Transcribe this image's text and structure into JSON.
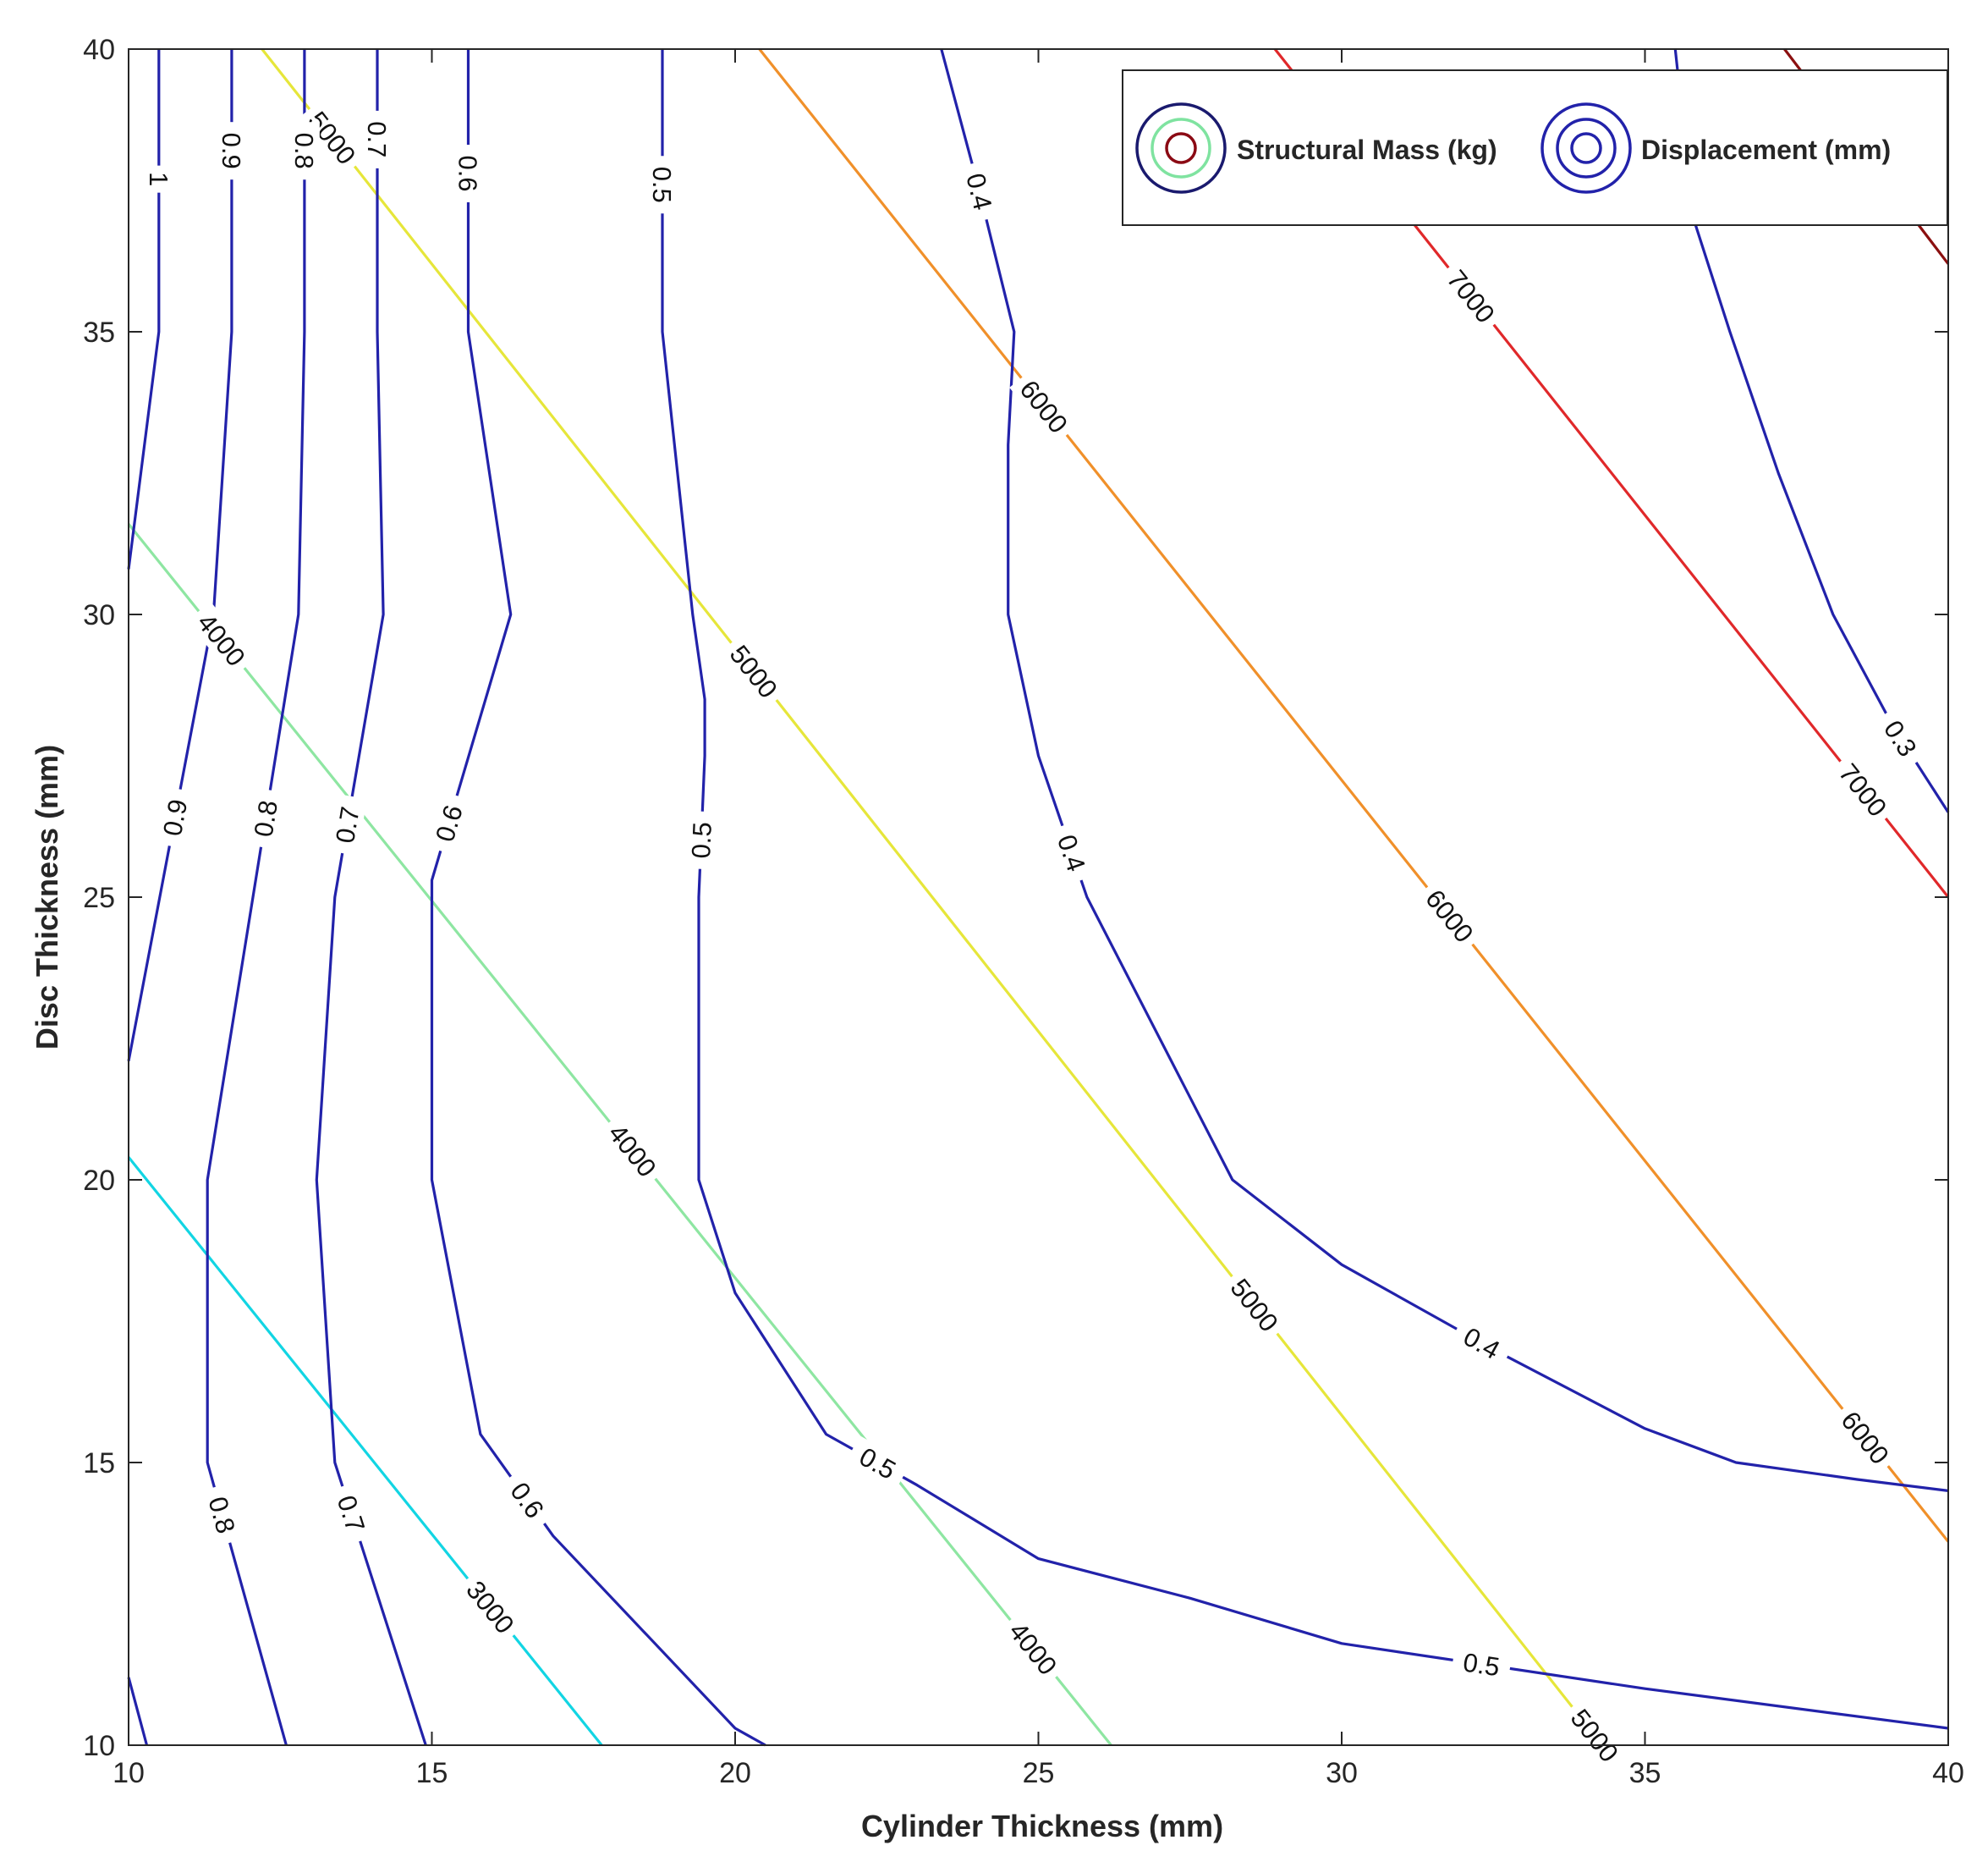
{
  "chart_data": {
    "type": "contour",
    "xlabel": "Cylinder Thickness (mm)",
    "ylabel": "Disc Thickness (mm)",
    "xlim": [
      10,
      40
    ],
    "ylim": [
      10,
      40
    ],
    "xticks": [
      "10",
      "15",
      "20",
      "25",
      "30",
      "35",
      "40"
    ],
    "yticks": [
      "10",
      "15",
      "20",
      "25",
      "30",
      "35",
      "40"
    ],
    "legend": [
      {
        "label": "Structural Mass (kg)",
        "rings": [
          "#1a1a6e",
          "#7fe3a0",
          "#8b0a14"
        ]
      },
      {
        "label": "Displacement (mm)",
        "rings": [
          "#2222aa",
          "#2222aa",
          "#2222aa"
        ]
      }
    ],
    "legend_position": "top-right",
    "series": [
      {
        "name": "Structural Mass (kg)",
        "level": 3000,
        "label": "3000",
        "color": "#12d5e3",
        "points": [
          [
            10,
            20.4
          ],
          [
            17.8,
            10
          ]
        ],
        "labels": [
          [
            15.8,
            12.3
          ]
        ]
      },
      {
        "name": "Structural Mass (kg)",
        "level": 4000,
        "label": "4000",
        "color": "#8ee6a2",
        "points": [
          [
            10,
            31.6
          ],
          [
            26.2,
            10
          ]
        ],
        "labels": [
          [
            11.7,
            29.7
          ],
          [
            18.4,
            20.6
          ],
          [
            24.9,
            11.7
          ]
        ]
      },
      {
        "name": "Structural Mass (kg)",
        "level": 5000,
        "label": "5000",
        "color": "#e6e63a",
        "points": [
          [
            12.2,
            40
          ],
          [
            34.3,
            10
          ]
        ],
        "labels": [
          [
            13.2,
            38.3
          ],
          [
            20.2,
            28.9
          ],
          [
            28.7,
            17.9
          ],
          [
            35.5,
            11.3
          ]
        ]
      },
      {
        "name": "Structural Mass (kg)",
        "level": 6000,
        "label": "6000",
        "color": "#f0902a",
        "points": [
          [
            20.4,
            40
          ],
          [
            40,
            13.6
          ]
        ],
        "labels": [
          [
            25.0,
            33.6
          ],
          [
            31.7,
            24.6
          ],
          [
            38.7,
            15.5
          ]
        ]
      },
      {
        "name": "Structural Mass (kg)",
        "level": 7000,
        "label": "7000",
        "color": "#e0282a",
        "points": [
          [
            28.9,
            40
          ],
          [
            40,
            25
          ]
        ],
        "labels": [
          [
            32.1,
            35.6
          ],
          [
            38.6,
            26.9
          ]
        ]
      },
      {
        "name": "Structural Mass (kg)",
        "level": 8000,
        "label": "",
        "color": "#8b1010",
        "points": [
          [
            37.3,
            40
          ],
          [
            40,
            36.2
          ]
        ],
        "labels": []
      },
      {
        "name": "Displacement (mm)",
        "level": 1.0,
        "label": "1",
        "color": "#2222aa",
        "points": [
          [
            10.5,
            40
          ],
          [
            10.5,
            35
          ],
          [
            10,
            30.8
          ]
        ],
        "labels": [
          [
            10.6,
            37.7
          ]
        ]
      },
      {
        "name": "Displacement (mm)",
        "level": 1.0,
        "label": "",
        "color": "#2222aa",
        "points": [
          [
            10,
            11.2
          ],
          [
            10.3,
            10
          ]
        ],
        "labels": []
      },
      {
        "name": "Displacement (mm)",
        "level": 0.9,
        "label": "0.9",
        "color": "#2222aa",
        "points": [
          [
            11.7,
            40
          ],
          [
            11.7,
            35
          ],
          [
            11.4,
            30
          ],
          [
            10,
            22.1
          ]
        ],
        "labels": [
          [
            11.6,
            38.2
          ],
          [
            10.8,
            26.4
          ]
        ]
      },
      {
        "name": "Displacement (mm)",
        "level": 0.8,
        "label": "0.8",
        "color": "#2222aa",
        "points": [
          [
            12.9,
            40
          ],
          [
            12.9,
            35
          ],
          [
            12.8,
            30
          ],
          [
            11.3,
            20
          ],
          [
            11.3,
            15
          ],
          [
            12.6,
            10
          ]
        ],
        "labels": [
          [
            12.9,
            38.2
          ],
          [
            12.2,
            26.4
          ],
          [
            11.3,
            14.0
          ]
        ]
      },
      {
        "name": "Displacement (mm)",
        "level": 0.7,
        "label": "0.7",
        "color": "#2222aa",
        "points": [
          [
            14.1,
            40
          ],
          [
            14.1,
            35
          ],
          [
            14.2,
            30
          ],
          [
            13.4,
            25
          ],
          [
            13.1,
            20
          ],
          [
            13.4,
            15
          ],
          [
            14.9,
            10
          ]
        ],
        "labels": [
          [
            14.0,
            38.4
          ],
          [
            13.5,
            26.3
          ],
          [
            13.4,
            14.0
          ]
        ]
      },
      {
        "name": "Displacement (mm)",
        "level": 0.6,
        "label": "0.6",
        "color": "#2222aa",
        "points": [
          [
            15.6,
            40
          ],
          [
            15.6,
            35
          ],
          [
            16.3,
            30
          ],
          [
            15.0,
            25.3
          ],
          [
            15.0,
            20
          ],
          [
            15.8,
            15.5
          ],
          [
            17.0,
            13.7
          ],
          [
            20.0,
            10.3
          ],
          [
            20.5,
            10
          ]
        ],
        "labels": [
          [
            15.6,
            37.8
          ],
          [
            15.3,
            26.3
          ],
          [
            16.4,
            14.2
          ]
        ]
      },
      {
        "name": "Displacement (mm)",
        "level": 0.5,
        "label": "0.5",
        "color": "#2222aa",
        "points": [
          [
            18.8,
            40
          ],
          [
            18.8,
            35
          ],
          [
            19.3,
            30
          ],
          [
            19.5,
            28.5
          ],
          [
            19.5,
            27.5
          ],
          [
            19.4,
            25
          ],
          [
            19.4,
            20
          ],
          [
            20.0,
            18
          ],
          [
            21.5,
            15.5
          ],
          [
            23.0,
            14.6
          ],
          [
            25.0,
            13.3
          ],
          [
            27.5,
            12.6
          ],
          [
            30.0,
            11.8
          ],
          [
            35.0,
            11.0
          ],
          [
            40.0,
            10.3
          ]
        ],
        "labels": [
          [
            18.8,
            37.6
          ],
          [
            19.6,
            26.0
          ],
          [
            22.2,
            14.7
          ],
          [
            32.3,
            11.4
          ]
        ]
      },
      {
        "name": "Displacement (mm)",
        "level": 0.4,
        "label": "0.4",
        "color": "#2222aa",
        "points": [
          [
            23.4,
            40
          ],
          [
            24.0,
            37.6
          ],
          [
            24.6,
            35
          ],
          [
            24.5,
            33
          ],
          [
            24.5,
            30
          ],
          [
            25.0,
            27.5
          ],
          [
            25.8,
            25
          ],
          [
            27.0,
            22.5
          ],
          [
            28.2,
            20
          ],
          [
            30.0,
            18.5
          ],
          [
            32.5,
            17.0
          ],
          [
            35.0,
            15.6
          ],
          [
            36.5,
            15.0
          ],
          [
            38.5,
            14.7
          ],
          [
            40.0,
            14.5
          ]
        ],
        "labels": [
          [
            24.1,
            37.5
          ],
          [
            25.6,
            25.8
          ],
          [
            32.2,
            16.9
          ]
        ]
      },
      {
        "name": "Displacement (mm)",
        "level": 0.3,
        "label": "0.3",
        "color": "#2222aa",
        "points": [
          [
            35.5,
            40
          ],
          [
            35.8,
            37
          ],
          [
            36.4,
            35
          ],
          [
            37.2,
            32.5
          ],
          [
            38.1,
            30
          ],
          [
            39.1,
            28
          ],
          [
            40.0,
            26.5
          ]
        ],
        "labels": [
          [
            39.2,
            27.8
          ]
        ]
      }
    ]
  }
}
